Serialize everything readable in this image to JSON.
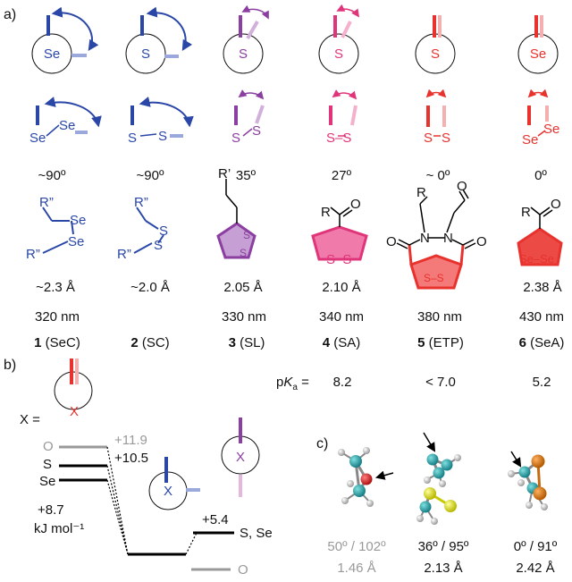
{
  "panel_labels": {
    "a": "a)",
    "b": "b)",
    "c": "c)"
  },
  "compounds": [
    {
      "torsion_glyph": "Se",
      "dihedral": "~90º",
      "bond_length": "~2.3 Å",
      "wavelength": "320 nm",
      "number": "1",
      "abbrev": "(SeC)",
      "color": "#2a47a8"
    },
    {
      "torsion_glyph": "S",
      "dihedral": "~90º",
      "bond_length": "~2.0 Å",
      "wavelength": "",
      "number": "2",
      "abbrev": "(SC)",
      "color": "#2a47a8"
    },
    {
      "torsion_glyph": "S",
      "dihedral": "35º",
      "bond_length": "2.05 Å",
      "wavelength": "330 nm",
      "number": "3",
      "abbrev": "(SL)",
      "color": "#8b3fa0"
    },
    {
      "torsion_glyph": "S",
      "dihedral": "27º",
      "bond_length": "2.10 Å",
      "wavelength": "340 nm",
      "number": "4",
      "abbrev": "(SA)",
      "color": "#e0357a"
    },
    {
      "torsion_glyph": "S",
      "dihedral": "~ 0º",
      "bond_length": "",
      "wavelength": "380 nm",
      "number": "5",
      "abbrev": "(ETP)",
      "color": "#e8322e"
    },
    {
      "torsion_glyph": "Se",
      "dihedral": "0º",
      "bond_length": "2.38 Å",
      "wavelength": "430 nm",
      "number": "6",
      "abbrev": "(SeA)",
      "color": "#e8322e"
    }
  ],
  "pka": {
    "label_p": "p",
    "label_k": "K",
    "label_a": "a",
    "eq": " =",
    "values": [
      "8.2",
      "< 7.0",
      "5.2"
    ]
  },
  "structure_labels": {
    "se_top": "Se",
    "se_bottom": "Se",
    "s_top_1": "S",
    "s_bottom_1": "S",
    "ss_3a": "S",
    "ss_3b": "S",
    "ss_4": "S–S",
    "ss_5": "S–S",
    "sese_6": "Se–Se",
    "ses_top": "Se",
    "ses_bot": "S",
    "sese_row_top": "Se",
    "sese_row_bot": "Se",
    "ss_row_top": "S",
    "ss_row_bot": "S",
    "r2a": "R”",
    "r2b": "R”",
    "r2c": "R”",
    "r2d": "R”",
    "r1": "R’",
    "r4": "R",
    "r5": "R",
    "r6": "R",
    "o4": "O",
    "o5a": "O",
    "o5b": "O",
    "o5c": "O",
    "o6": "O",
    "n5a": "N",
    "n5b": "N",
    "ser2_s1": "S",
    "ser2_s2": "S",
    "ser2_s3": "S"
  },
  "energy_diagram": {
    "x_label": "X =",
    "x_glyph_top": "X",
    "x_glyph_mid": "X",
    "x_glyph_right": "X",
    "levels_left": [
      {
        "atom": "O",
        "energy": "+11.9",
        "color": "#999999"
      },
      {
        "atom": "S",
        "energy": "+10.5",
        "color": "#000000"
      },
      {
        "atom": "Se",
        "energy": "",
        "color": "#000000"
      }
    ],
    "se_energy": "+8.7",
    "unit": "kJ mol⁻¹",
    "right_energy": "+5.4",
    "right_atoms": "S, Se",
    "right_o": "O"
  },
  "crystal": {
    "angles": [
      "50º / 102º",
      "36º / 95º",
      "0º / 91º"
    ],
    "lengths": [
      "1.46 Å",
      "2.13 Å",
      "2.42 Å"
    ],
    "angle_colors": [
      "#999999",
      "#000000",
      "#000000"
    ]
  }
}
